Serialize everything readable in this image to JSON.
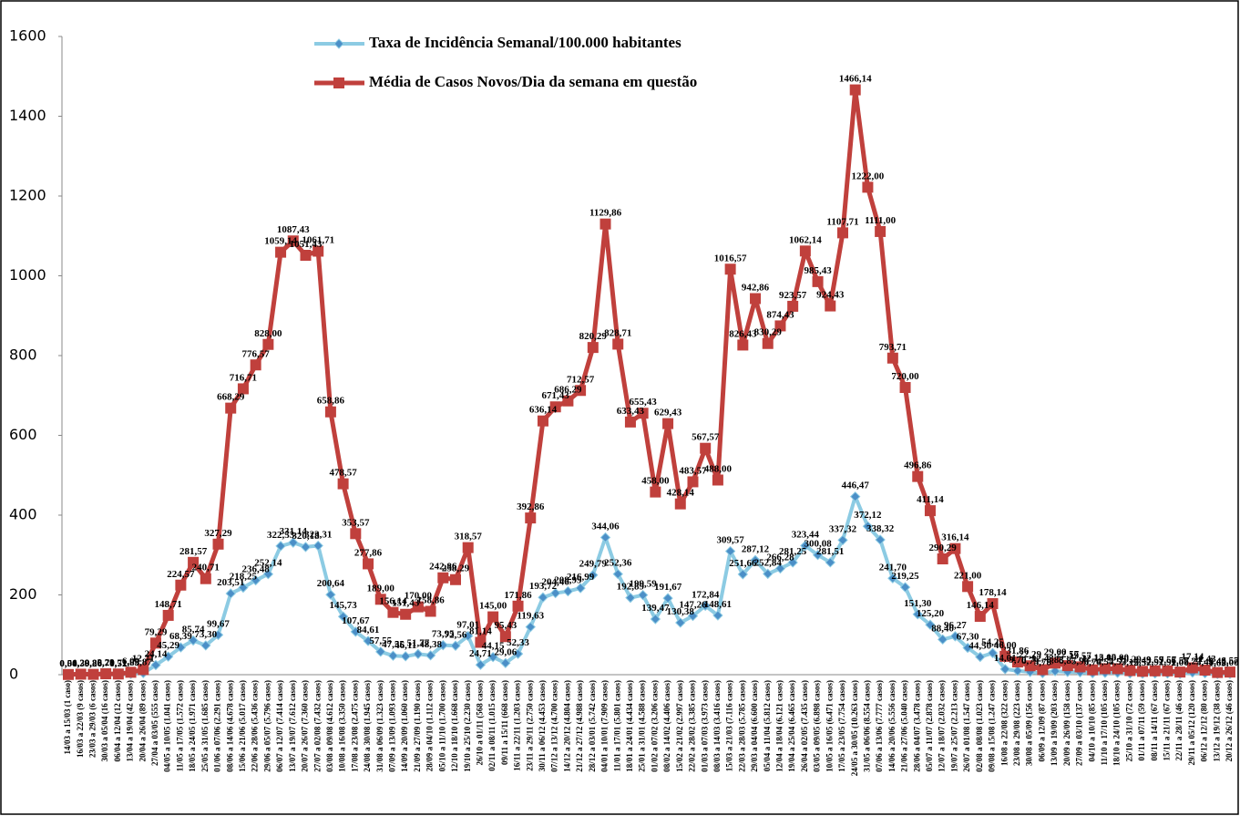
{
  "chart_data": {
    "type": "line",
    "ylim": [
      0,
      1600
    ],
    "yticks": [
      0,
      200,
      400,
      600,
      800,
      1000,
      1200,
      1400,
      1600
    ],
    "categories": [
      "14/03 a 15/03 (1 caso)",
      "16/03 a 22/03 (9 casos)",
      "23/03 a 29/03 (6 casos)",
      "30/03 a 05/04 (16 casos)",
      "06/04 a 12/04 (12 casos)",
      "13/04 a 19/04 (42 casos)",
      "20/04 a 26/04 (89 casos)",
      "27/04 a 03/05 (555 casos)",
      "04/05 a 10/05 (1.041 casos)",
      "11/05 a 17/05 (1.572 casos)",
      "18/05 a 24/05 (1.971 casos)",
      "25/05 a 31/05 (1.685 casos)",
      "01/06 a 07/06 (2.291 casos)",
      "08/06 a 14/06 (4.678 casos)",
      "15/06 a 21/06 (5.017 casos)",
      "22/06 a 28/06 (5.436 casos)",
      "29/06 a 05/07 (5.796 casos)",
      "06/07 a 12/07 (7.414 casos)",
      "13/07 a 19/07 (7.612 casos)",
      "20/07 a 26/07 (7.360 casos)",
      "27/07 a 02/08 (7.432 casos)",
      "03/08 a 09/08 (4.612 casos)",
      "10/08 a 16/08 (3.350 casos)",
      "17/08 a 23/08 (2.475 casos)",
      "24/08 a 30/08 (1.945 casos)",
      "31/08 a 06/09 (1.323 casos)",
      "07/09 a 13/09 (1.093 casos)",
      "14/09 a 20/09 (1.060 casos)",
      "21/09 a 27/09 (1.190 casos)",
      "28/09 a 04/10 (1.112 casos)",
      "05/10 a 11/10 (1.700 casos)",
      "12/10 a 18/10 (1.668 casos)",
      "19/10 a 25/10 (2.230 casos)",
      "26/10 a 01/11 (568 casos)",
      "02/11 a 08/11 (1.015 casos)",
      "09/11 a 15/11 (668 casos)",
      "16/11 a 22/11 (1.203 casos)",
      "23/11 a 29/11 (2.750 casos)",
      "30/11 a 06/12 (4.453 casos)",
      "07/12 a 13/12 (4.700 casos)",
      "14/12 a 20/12 (4.804 casos)",
      "21/12 a 27/12 (4.988 casos)",
      "28/12 a 03/01 (5.742 casos)",
      "04/01 a 10/01 (7.909 casos)",
      "11/01 a 17/01 (5.801 casos)",
      "18/01 a 24/01 (4.434 casos)",
      "25/01 a 31/01 (4.588 casos)",
      "01/02 a 07/02 (3.206 casos)",
      "08/02 a 14/02 (4.406 casos)",
      "15/02 a 21/02 (2.997 casos)",
      "22/02 a 28/02 (3.385 casos)",
      "01/03 a 07/03 (3.973 casos)",
      "08/03 a 14/03 (3.416 casos)",
      "15/03 a 21/03 (7.116 casos)",
      "22/03 a 28/03 (5.785 casos)",
      "29/03 a 04/04 (6.600 casos)",
      "05/04 a 11/04 (5.812 casos)",
      "12/04 a 18/04 (6.121 casos)",
      "19/04 a 25/04 (6.465 casos)",
      "26/04 a 02/05 (7.435 casos)",
      "03/05 a 09/05 (6.898 casos)",
      "10/05 a 16/05 (6.471 casos)",
      "17/05 a 23/05 (7.754 casos)",
      "24/05 a 30/05 (10.263 casos)",
      "31/05 a 06/06 (8.554 casos)",
      "07/06 a 13/06 (7.777 casos)",
      "14/06 a 20/06 (5.556 casos)",
      "21/06 a 27/06 (5.040 casos)",
      "28/06 a 04/07 (3.478 casos)",
      "05/07 a 11/07 (2.878 casos)",
      "12/07 a 18/07 (2.032 casos)",
      "19/07 a 25/07 (2.213 casos)",
      "26/07 a 01/08 (1.547 casos)",
      "02/08 a 08/08 (1.023 casos)",
      "09/08 a 15/08 (1.247 casos)",
      "16/08 a 22/08 (322 casos)",
      "23/08 a 29/08 (223 casos)",
      "30/08 a 05/09 (156 casos)",
      "06/09 a 12/09 (87 casos)",
      "13/09 a 19/09 (203 casos)",
      "20/09 a 26/09 (158 casos)",
      "27/09 a 03/10 (137 casos)",
      "04/10 a 10/10 (85 casos)",
      "11/10 a 17/10 (105 casos)",
      "18/10 a 24/10 (105 casos)",
      "25/10 a 31/10 (72 casos)",
      "01/11 a 07/11 (59 casos)",
      "08/11 a 14/11 (67 casos)",
      "15/11 a 21/11 (67 casos)",
      "22/11 a 28/11 (46 casos)",
      "29/11 a 05/12 (120 casos)",
      "06/12 a 12/12 (80 casos)",
      "13/12 a 19/12 (38 casos)",
      "20/12 a 26/12 (46 casos)"
    ],
    "series": [
      {
        "name": "Taxa de Incidência Semanal/100.000 habitantes",
        "color": "#8ccbe3",
        "marker": "diamond",
        "values": [
          0.04,
          0.39,
          0.26,
          0.7,
          0.52,
          1.83,
          3.87,
          24.14,
          45.29,
          68.39,
          85.74,
          73.3,
          99.67,
          203.51,
          218.25,
          236.48,
          252.14,
          322.53,
          331.14,
          320.18,
          323.31,
          200.64,
          145.73,
          107.67,
          84.61,
          57.55,
          47.55,
          46.11,
          51.77,
          48.38,
          73.95,
          72.56,
          97.01,
          24.71,
          44.15,
          29.06,
          52.33,
          119.63,
          193.72,
          204.46,
          208.99,
          216.99,
          249.79,
          344.06,
          252.36,
          192.89,
          199.59,
          139.47,
          191.67,
          130.38,
          147.26,
          172.84,
          148.61,
          309.57,
          251.66,
          287.12,
          252.84,
          266.28,
          281.25,
          323.44,
          300.08,
          281.51,
          337.32,
          446.47,
          372.12,
          338.32,
          241.7,
          219.25,
          151.3,
          125.2,
          88.4,
          96.27,
          67.3,
          44.5,
          54.25,
          14.01,
          9.7,
          6.79,
          3.78,
          8.83,
          6.87,
          5.96,
          3.7,
          4.57,
          4.57,
          3.13,
          2.57,
          2.91,
          2.91,
          2,
          5.22,
          3.48,
          1.65,
          2
        ],
        "value_labels": [
          "0,04",
          "0,39",
          "0,26",
          "0,70",
          "0,52",
          "1,83",
          "3,87",
          "24,14",
          "45,29",
          "68,39",
          "85,74",
          "73,30",
          "99,67",
          "203,51",
          "218,25",
          "236,48",
          "252,14",
          "322,53",
          "331,14",
          "320,18",
          "323,31",
          "200,64",
          "145,73",
          "107,67",
          "84,61",
          "57,55",
          "47,55",
          "46,11",
          "51,77",
          "48,38",
          "73,95",
          "72,56",
          "97,01",
          "24,71",
          "44,15",
          "29,06",
          "52,33",
          "119,63",
          "193,72",
          "204,46",
          "208,99",
          "216,99",
          "249,79",
          "344,06",
          "252,36",
          "192,89",
          "199,59",
          "139,47",
          "191,67",
          "130,38",
          "147,26",
          "172,84",
          "148,61",
          "309,57",
          "251,66",
          "287,12",
          "252,84",
          "266,28",
          "281,25",
          "323,44",
          "300,08",
          "281,51",
          "337,32",
          "446,47",
          "372,12",
          "338,32",
          "241,70",
          "219,25",
          "151,30",
          "125,20",
          "88,40",
          "96,27",
          "67,30",
          "44,50",
          "54,25",
          "14,01",
          "9,70",
          "6,79",
          "3,78",
          "8,83",
          "6,87",
          "5,96",
          "3,70",
          "4,57",
          "4,57",
          "3,13",
          "2,57",
          "2,91",
          "2,91",
          "2,00",
          "5,22",
          "3,48",
          "1,65",
          "2,00"
        ]
      },
      {
        "name": "Média de Casos Novos/Dia da semana em questão",
        "color": "#c0403c",
        "marker": "square",
        "values": [
          0.5,
          1.29,
          0.86,
          2.29,
          1.71,
          6,
          12.71,
          79.29,
          148.71,
          224.57,
          281.57,
          240.71,
          327.29,
          668.29,
          716.71,
          776.57,
          828,
          1059.14,
          1087.43,
          1051.43,
          1061.71,
          658.86,
          478.57,
          353.57,
          277.86,
          189,
          156.14,
          151.43,
          170,
          158.86,
          242.86,
          238.29,
          318.57,
          81.14,
          145,
          95.43,
          171.86,
          392.86,
          636.14,
          671.43,
          686.29,
          712.57,
          820.29,
          1129.86,
          828.71,
          633.43,
          655.43,
          458,
          629.43,
          428.14,
          483.57,
          567.57,
          488,
          1016.57,
          826.43,
          942.86,
          830.29,
          874.43,
          923.57,
          1062.14,
          985.43,
          924.43,
          1107.71,
          1466.14,
          1222,
          1111,
          793.71,
          720,
          496.86,
          411.14,
          290.29,
          316.14,
          221,
          146.14,
          178.14,
          46,
          31.86,
          22.29,
          12.43,
          29,
          22.57,
          19.57,
          12.14,
          15,
          15,
          10.29,
          8.43,
          9.57,
          9.57,
          6.57,
          17.14,
          11.43,
          5.43,
          6.57
        ],
        "value_labels": [
          "0,50",
          "1,29",
          "0,86",
          "2,29",
          "1,71",
          "6,00",
          "12,71",
          "79,29",
          "148,71",
          "224,57",
          "281,57",
          "240,71",
          "327,29",
          "668,29",
          "716,71",
          "776,57",
          "828,00",
          "1059,14",
          "1087,43",
          "1051,43",
          "1061,71",
          "658,86",
          "478,57",
          "353,57",
          "277,86",
          "189,00",
          "156,14",
          "151,43",
          "170,00",
          "158,86",
          "242,86",
          "238,29",
          "318,57",
          "81,14",
          "145,00",
          "95,43",
          "171,86",
          "392,86",
          "636,14",
          "671,43",
          "686,29",
          "712,57",
          "820,29",
          "1129,86",
          "828,71",
          "633,43",
          "655,43",
          "458,00",
          "629,43",
          "428,14",
          "483,57",
          "567,57",
          "488,00",
          "1016,57",
          "826,43",
          "942,86",
          "830,29",
          "874,43",
          "923,57",
          "1062,14",
          "985,43",
          "924,43",
          "1107,71",
          "1466,14",
          "1222,00",
          "1111,00",
          "793,71",
          "720,00",
          "496,86",
          "411,14",
          "290,29",
          "316,14",
          "221,00",
          "146,14",
          "178,14",
          "46,00",
          "31,86",
          "22,29",
          "12,43",
          "29,00",
          "22,57",
          "19,57",
          "12,14",
          "15,00",
          "15,00",
          "10,29",
          "8,43",
          "9,57",
          "9,57",
          "6,57",
          "17,14",
          "11,43",
          "5,43",
          "6,57"
        ]
      }
    ]
  }
}
